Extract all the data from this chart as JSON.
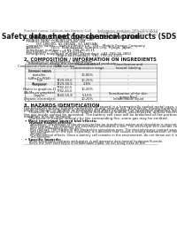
{
  "title": "Safety data sheet for chemical products (SDS)",
  "header_left": "Product name: Lithium Ion Battery Cell",
  "header_right_line1": "Substance number: SRS-049-09/10",
  "header_right_line2": "Established / Revision: Dec.1.2016",
  "section1_title": "1. PRODUCT AND COMPANY IDENTIFICATION",
  "section1_items": [
    "  Product name: Lithium Ion Battery Cell",
    "  Product code: Cylindrical-type cell",
    "           (SY-18650U, SY-18650L, SY-18650A)",
    "  Company name:    Sanyo Electric Co., Ltd.,  Mobile Energy Company",
    "  Address:         2001  Kamikosaka, Sumoto-City, Hyogo, Japan",
    "  Telephone number:    +81-799-26-4111",
    "  Fax number:   +81-799-26-4120",
    "  Emergency telephone number (Weekday): +81-799-26-3862",
    "                             (Night and holiday): +81-799-26-4101"
  ],
  "section2_title": "2. COMPOSITION / INFORMATION ON INGREDIENTS",
  "section2_intro": "  Substance or preparation: Preparation",
  "section2_sub": "    Information about the chemical nature of product:",
  "table_headers": [
    "Component/chemical name",
    "CAS number",
    "Concentration /\nConcentration range",
    "Classification and\nhazard labeling"
  ],
  "section3_title": "3. HAZARDS IDENTIFICATION",
  "s3_lines": [
    "For the battery cell, chemical materials are stored in a hermetically sealed metal case, designed to withstand",
    "temperatures during routine-operations during normal use. As a result, during normal use, there is no",
    "physical danger of ignition or explosion and there no danger of hazardous materials leakage.",
    "     However, if exposed to a fire, added mechanical shocks, decomposed, almost electric without any measure,",
    "the gas inside cannot be operated. The battery cell case will be breached of fire-portions, hazardous",
    "materials may be released.",
    "     Moreover, if heated strongly by the surrounding fire, some gas may be emitted."
  ],
  "bullet1": "Most important hazard and effects:",
  "human_header": "Human health effects:",
  "inhal_lines": [
    "Inhalation: The release of the electrolyte has an anesthetics action and stimulates is respiratory tract.",
    "Skin contact: The release of the electrolyte stimulates a skin. The electrolyte skin contact causes a",
    "sore and stimulation on the skin.",
    "Eye contact: The release of the electrolyte stimulates eyes. The electrolyte eye contact causes a sore",
    "and stimulation on the eye. Especially, a substance that causes a strong inflammation of the eye is",
    "contained.",
    "Environmental effects: Since a battery cell remains in the environment, do not throw out it into the",
    "environment."
  ],
  "bullet2": "Specific hazards:",
  "spec_lines": [
    "If the electrolyte contacts with water, it will generate detrimental hydrogen fluoride.",
    "Since the (eel) electrolyte is inflammable liquid, do not bring close to fire."
  ],
  "bg_color": "#ffffff",
  "text_color": "#1a1a1a",
  "gray_color": "#777777",
  "table_border_color": "#888888",
  "title_fontsize": 5.5,
  "header_fontsize": 2.8,
  "section_fontsize": 3.8,
  "body_fontsize": 2.8,
  "table_fontsize": 2.6
}
